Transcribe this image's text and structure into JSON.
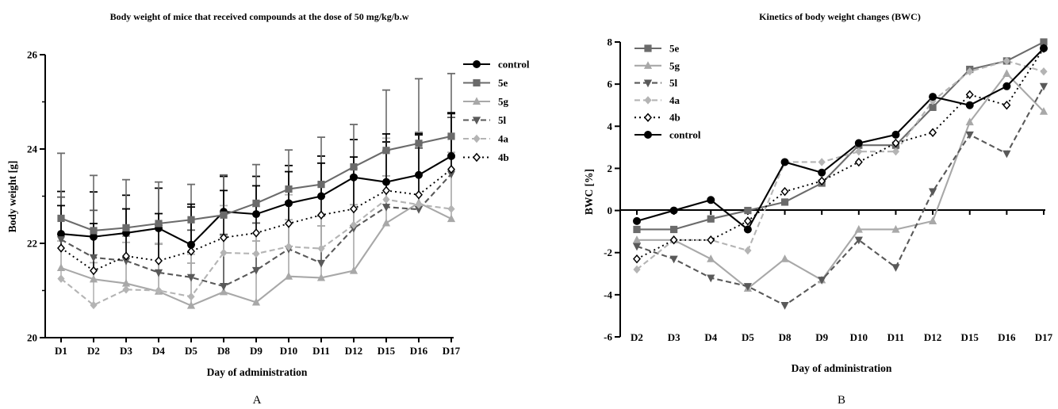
{
  "panel_labels": {
    "a": "A",
    "b": "B"
  },
  "chart_data": [
    {
      "type": "line",
      "title": "Body weight of mice that received compounds at the dose of  50 mg/kg/b.w",
      "xlabel": "Day of administration",
      "ylabel": "Body weight [g]",
      "categories": [
        "D1",
        "D2",
        "D3",
        "D4",
        "D5",
        "D8",
        "D9",
        "D10",
        "D11",
        "D12",
        "D15",
        "D16",
        "D17"
      ],
      "ylim": [
        20,
        26
      ],
      "yticks": [
        20,
        22,
        24,
        26
      ],
      "ytick_labels": [
        "20",
        "22",
        "24",
        "26"
      ],
      "grid": false,
      "legend_position": "right",
      "series": [
        {
          "name": "control",
          "color": "#000000",
          "marker": "circle",
          "dash": "solid",
          "values": [
            22.2,
            22.14,
            22.22,
            22.32,
            21.97,
            22.67,
            22.62,
            22.85,
            23.0,
            23.4,
            23.3,
            23.45,
            23.85
          ],
          "errors": [
            0.9,
            0.95,
            0.8,
            0.85,
            0.8,
            0.75,
            0.8,
            0.8,
            0.85,
            0.8,
            0.85,
            0.85,
            0.9
          ]
        },
        {
          "name": "5e",
          "color": "#6b6b6b",
          "marker": "square",
          "dash": "solid",
          "values": [
            22.53,
            22.27,
            22.33,
            22.42,
            22.5,
            22.6,
            22.85,
            23.15,
            23.25,
            23.62,
            23.97,
            24.12,
            24.27
          ],
          "errors": [
            1.38,
            1.17,
            1.02,
            0.88,
            0.75,
            0.85,
            0.82,
            0.83,
            1.0,
            0.9,
            1.28,
            1.37,
            1.33
          ]
        },
        {
          "name": "5g",
          "color": "#a8a8a8",
          "marker": "triangle-up",
          "dash": "solid",
          "values": [
            21.48,
            21.24,
            21.15,
            20.98,
            20.68,
            20.97,
            20.75,
            21.3,
            21.27,
            21.42,
            22.43,
            22.86,
            22.52
          ],
          "errors": [
            0.7,
            0.9,
            1.0,
            1.0,
            0.9,
            1.2,
            1.3,
            1.2,
            1.1,
            1.4,
            1.0,
            1.5,
            1.3
          ]
        },
        {
          "name": "5l",
          "color": "#595959",
          "marker": "triangle-down",
          "dash": "dash",
          "values": [
            22.08,
            21.7,
            21.63,
            21.38,
            21.28,
            21.09,
            21.43,
            21.88,
            21.58,
            22.32,
            22.77,
            22.72,
            23.47
          ],
          "errors": [
            0.9,
            1.0,
            1.1,
            1.0,
            1.0,
            1.1,
            1.0,
            1.0,
            1.0,
            1.1,
            1.2,
            1.3,
            1.2
          ]
        },
        {
          "name": "4a",
          "color": "#b4b4b4",
          "marker": "diamond",
          "dash": "dash",
          "values": [
            21.25,
            20.69,
            21.02,
            21.0,
            20.87,
            21.8,
            21.78,
            21.93,
            21.89,
            22.39,
            22.93,
            22.82,
            22.73
          ],
          "errors": [
            0.8,
            0.9,
            1.0,
            1.0,
            0.9,
            1.0,
            1.0,
            1.1,
            1.1,
            1.2,
            1.3,
            1.3,
            1.2
          ]
        },
        {
          "name": "4b",
          "color": "#000000",
          "marker": "diamond-open",
          "dash": "dot",
          "values": [
            21.9,
            21.42,
            21.73,
            21.63,
            21.83,
            22.12,
            22.22,
            22.42,
            22.6,
            22.73,
            23.12,
            23.03,
            23.57
          ],
          "errors": [
            0.9,
            1.0,
            1.0,
            1.0,
            1.0,
            1.0,
            1.0,
            1.1,
            1.1,
            1.1,
            1.2,
            1.3,
            1.2
          ]
        }
      ]
    },
    {
      "type": "line",
      "title": "Kinetics of body weight changes (BWC)",
      "xlabel": "Day of administration",
      "ylabel": "BWC [%]",
      "categories": [
        "D2",
        "D3",
        "D4",
        "D5",
        "D8",
        "D9",
        "D10",
        "D11",
        "D12",
        "D15",
        "D16",
        "D17"
      ],
      "ylim": [
        -6,
        8
      ],
      "yticks": [
        -6,
        -4,
        -2,
        0,
        2,
        4,
        6,
        8
      ],
      "ytick_labels": [
        "-6",
        "-4",
        "-2",
        "0",
        "2",
        "4",
        "6",
        "8"
      ],
      "grid": false,
      "legend_position": "top-left",
      "series": [
        {
          "name": "5e",
          "color": "#6b6b6b",
          "marker": "square",
          "dash": "solid",
          "values": [
            -0.9,
            -0.9,
            -0.4,
            0.0,
            0.4,
            1.3,
            3.1,
            3.1,
            4.9,
            6.7,
            7.1,
            8.0
          ]
        },
        {
          "name": "5g",
          "color": "#a8a8a8",
          "marker": "triangle-up",
          "dash": "solid",
          "values": [
            -1.4,
            -1.4,
            -2.3,
            -3.7,
            -2.3,
            -3.3,
            -0.9,
            -0.9,
            -0.5,
            4.2,
            6.5,
            4.7
          ]
        },
        {
          "name": "5l",
          "color": "#595959",
          "marker": "triangle-down",
          "dash": "dash",
          "values": [
            -1.7,
            -2.3,
            -3.2,
            -3.6,
            -4.5,
            -3.3,
            -1.4,
            -2.7,
            0.9,
            3.6,
            2.7,
            5.9
          ]
        },
        {
          "name": "4a",
          "color": "#b4b4b4",
          "marker": "diamond",
          "dash": "dash",
          "values": [
            -2.8,
            -1.4,
            -1.4,
            -1.9,
            2.3,
            2.3,
            2.8,
            2.8,
            5.2,
            6.6,
            7.1,
            6.6
          ]
        },
        {
          "name": "4b",
          "color": "#000000",
          "marker": "diamond-open",
          "dash": "dot",
          "values": [
            -2.3,
            -1.4,
            -1.4,
            -0.5,
            0.9,
            1.4,
            2.3,
            3.2,
            3.7,
            5.5,
            5.0,
            7.7
          ]
        },
        {
          "name": "control",
          "color": "#000000",
          "marker": "circle",
          "dash": "solid",
          "values": [
            -0.5,
            0.0,
            0.5,
            -0.9,
            2.3,
            1.8,
            3.2,
            3.6,
            5.4,
            5.0,
            5.9,
            7.7
          ]
        }
      ]
    }
  ]
}
